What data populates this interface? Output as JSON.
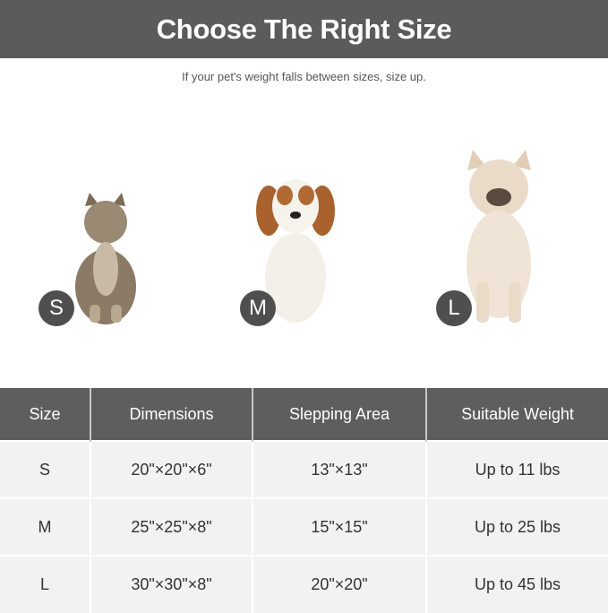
{
  "header": {
    "title": "Choose The Right Size"
  },
  "subtitle": "If your pet's weight falls between sizes, size up.",
  "pets": [
    {
      "label": "S",
      "image": "tabby-cat"
    },
    {
      "label": "M",
      "image": "cavalier-spaniel-dog"
    },
    {
      "label": "L",
      "image": "french-bulldog"
    }
  ],
  "table": {
    "headers": [
      "Size",
      "Dimensions",
      "Slepping Area",
      "Suitable Weight"
    ],
    "rows": [
      [
        "S",
        "20\"×20\"×6\"",
        "13\"×13\"",
        "Up to 11 lbs"
      ],
      [
        "M",
        "25\"×25\"×8\"",
        "15\"×15\"",
        "Up to 25 lbs"
      ],
      [
        "L",
        "30\"×30\"×8\"",
        "20\"×20\"",
        "Up to 45 lbs"
      ]
    ]
  },
  "colors": {
    "header_bg": "#5b5b5b",
    "table_header_bg": "#5e5e5e",
    "row_bg": "#f2f2f2",
    "badge": "#4f4f4f"
  }
}
